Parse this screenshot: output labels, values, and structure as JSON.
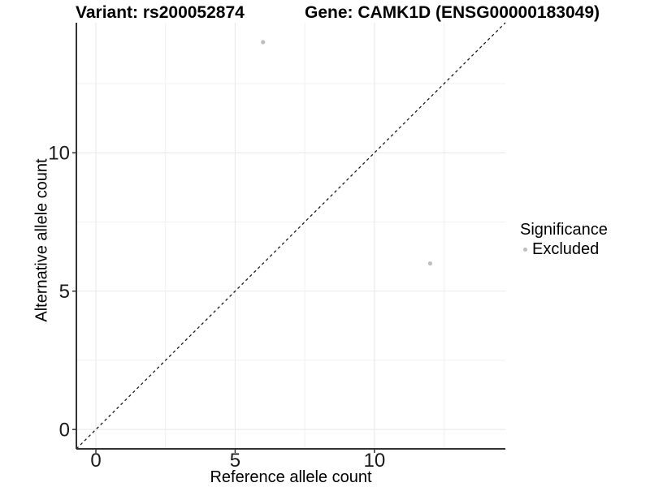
{
  "chart_data": {
    "type": "scatter",
    "title_left": "Variant: rs200052874",
    "title_right": "Gene: CAMK1D (ENSG00000183049)",
    "xlabel": "Reference allele count",
    "ylabel": "Alternative allele count",
    "xlim": [
      -0.7,
      14.7
    ],
    "ylim": [
      -0.7,
      14.7
    ],
    "x_ticks": [
      0,
      5,
      10
    ],
    "y_ticks": [
      0,
      5,
      10
    ],
    "minor_gridlines": [
      2.5,
      7.5,
      12.5
    ],
    "grid": true,
    "points": [
      {
        "x": 6,
        "y": 14,
        "significance": "Excluded"
      },
      {
        "x": 12,
        "y": 6,
        "significance": "Excluded"
      }
    ],
    "reference_line": {
      "type": "identity",
      "style": "dashed",
      "from": [
        -0.7,
        -0.7
      ],
      "to": [
        14.7,
        14.7
      ]
    },
    "legend": {
      "title": "Significance",
      "position": "right",
      "items": [
        {
          "label": "Excluded",
          "color": "#bebebe"
        }
      ]
    },
    "colors": {
      "point": "#bebebe",
      "grid_major": "#ebebeb",
      "grid_minor": "#f1f1f1",
      "axis_line": "#333333",
      "tick_label": "#1a1a1a",
      "dashed_line": "#1a1a1a"
    }
  }
}
